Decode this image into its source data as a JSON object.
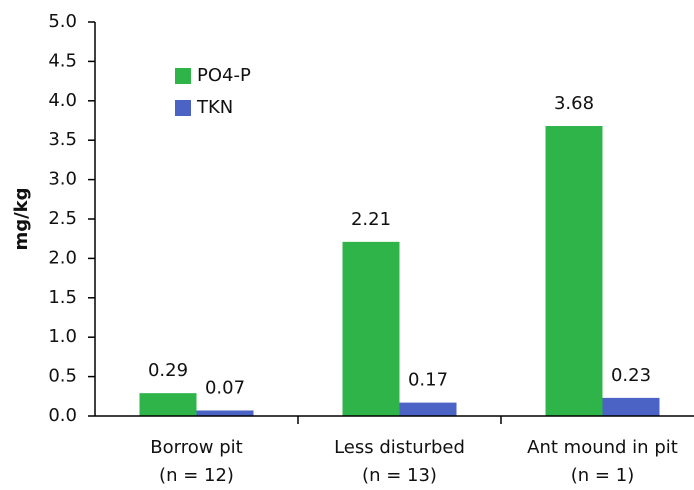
{
  "chart_data": {
    "type": "bar",
    "y_label": "mg/kg",
    "categories": [
      [
        "Borrow pit",
        "(n = 12)"
      ],
      [
        "Less disturbed",
        "(n = 13)"
      ],
      [
        "Ant mound in pit",
        "(n = 1)"
      ]
    ],
    "series": [
      {
        "name": "PO4-P",
        "color": "#2fb44a",
        "values": [
          0.29,
          2.21,
          3.68
        ]
      },
      {
        "name": "TKN",
        "color": "#4a63c4",
        "values": [
          0.07,
          0.17,
          0.23
        ]
      }
    ],
    "ylim": [
      0,
      5
    ],
    "yticks": [
      {
        "value": 0,
        "label": "0.0"
      },
      0.5,
      {
        "value": 1,
        "label": "1.0"
      },
      1.5,
      {
        "value": 2,
        "label": "2.0"
      },
      2.5,
      {
        "value": 3,
        "label": "3.0"
      },
      3.5,
      {
        "value": 4,
        "label": "4.0"
      },
      4.5,
      {
        "value": 5,
        "label": "5.0"
      }
    ],
    "legend": "upper-left"
  }
}
